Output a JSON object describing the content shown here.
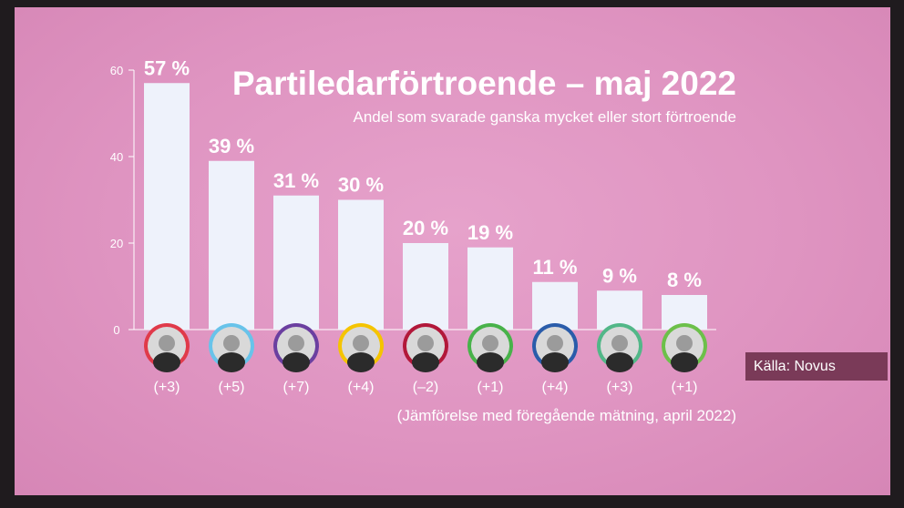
{
  "title": "Partiledarförtroende – maj 2022",
  "subtitle": "Andel som svarade ganska mycket eller stort förtroende",
  "footnote": "(Jämförelse med föregående mätning, april 2022)",
  "source": "Källa: Novus",
  "colors": {
    "background": "#e09bc5",
    "bar": "#eef2fb",
    "text": "#ffffff",
    "source_box": "#7a3a58"
  },
  "chart_data": {
    "type": "bar",
    "title": "Partiledarförtroende – maj 2022",
    "subtitle": "Andel som svarade ganska mycket eller stort förtroende",
    "xlabel": "",
    "ylabel": "",
    "ylim": [
      0,
      60
    ],
    "yticks": [
      0,
      20,
      40,
      60
    ],
    "values": [
      57,
      39,
      31,
      30,
      20,
      19,
      11,
      9,
      8
    ],
    "value_labels": [
      "57 %",
      "39 %",
      "31 %",
      "30 %",
      "20 %",
      "19 %",
      "11 %",
      "9 %",
      "8 %"
    ],
    "changes": [
      "(+3)",
      "(+5)",
      "(+7)",
      "(+4)",
      "(–2)",
      "(+1)",
      "(+4)",
      "(+3)",
      "(+1)"
    ],
    "avatar_ring_colors": [
      "#e03a4a",
      "#68c3ea",
      "#6b3fa0",
      "#f5c400",
      "#b2183a",
      "#48b24a",
      "#2a5caa",
      "#52b788",
      "#6cc04a"
    ],
    "grid": false,
    "legend": "none"
  }
}
